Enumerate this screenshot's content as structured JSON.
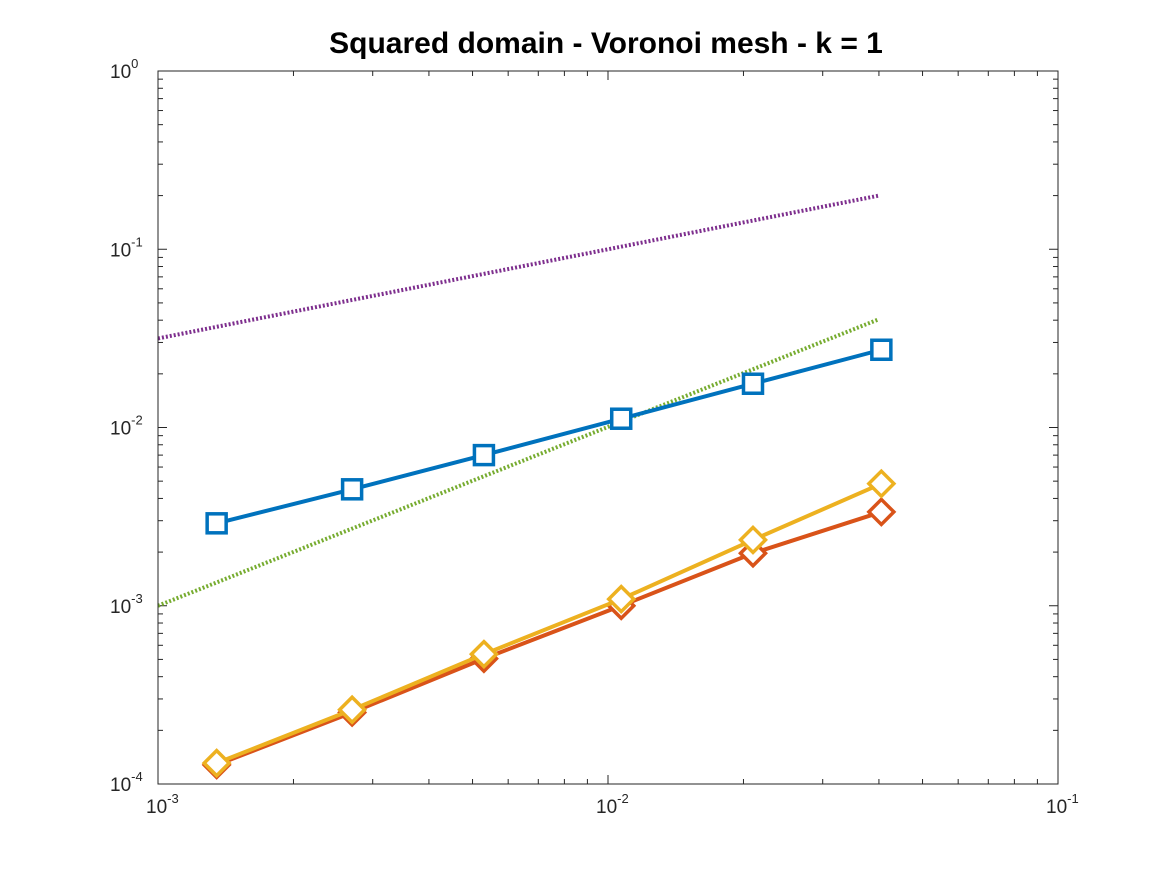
{
  "chart_data": {
    "type": "line",
    "title": "Squared domain - Voronoi mesh - k = 1",
    "xlabel": "",
    "ylabel": "",
    "xscale": "log",
    "yscale": "log",
    "xlim": [
      0.001,
      0.1
    ],
    "ylim": [
      0.0001,
      1
    ],
    "grid": false,
    "legend": "none",
    "x_ticks": [
      {
        "base": "10",
        "exp": "-3",
        "value": 0.001
      },
      {
        "base": "10",
        "exp": "-2",
        "value": 0.01
      },
      {
        "base": "10",
        "exp": "-1",
        "value": 0.1
      }
    ],
    "y_ticks": [
      {
        "base": "10",
        "exp": "-4",
        "value": 0.0001
      },
      {
        "base": "10",
        "exp": "-3",
        "value": 0.001
      },
      {
        "base": "10",
        "exp": "-2",
        "value": 0.01
      },
      {
        "base": "10",
        "exp": "-1",
        "value": 0.1
      },
      {
        "base": "10",
        "exp": "0",
        "value": 1
      }
    ],
    "series": [
      {
        "color": "#7E2F8E",
        "style": "dotted",
        "marker": "none",
        "x": [
          0.001,
          0.04
        ],
        "y": [
          0.0316,
          0.2
        ]
      },
      {
        "color": "#77AC30",
        "style": "dotted",
        "marker": "none",
        "x": [
          0.001,
          0.04
        ],
        "y": [
          0.001,
          0.0405
        ]
      },
      {
        "color": "#0072BD",
        "style": "solid",
        "marker": "square",
        "x": [
          0.00135,
          0.0027,
          0.0053,
          0.0107,
          0.021,
          0.0405
        ],
        "y": [
          0.0029,
          0.0045,
          0.007,
          0.0112,
          0.0176,
          0.0273
        ]
      },
      {
        "color": "#D95319",
        "style": "solid",
        "marker": "diamond",
        "x": [
          0.00135,
          0.0027,
          0.0053,
          0.0107,
          0.021,
          0.0405
        ],
        "y": [
          0.000128,
          0.000252,
          0.000505,
          0.001,
          0.00197,
          0.00336
        ]
      },
      {
        "color": "#EDB120",
        "style": "solid",
        "marker": "diamond",
        "x": [
          0.00135,
          0.0027,
          0.0053,
          0.0107,
          0.021,
          0.0405
        ],
        "y": [
          0.000131,
          0.000261,
          0.000535,
          0.00109,
          0.00234,
          0.00484
        ]
      }
    ]
  }
}
